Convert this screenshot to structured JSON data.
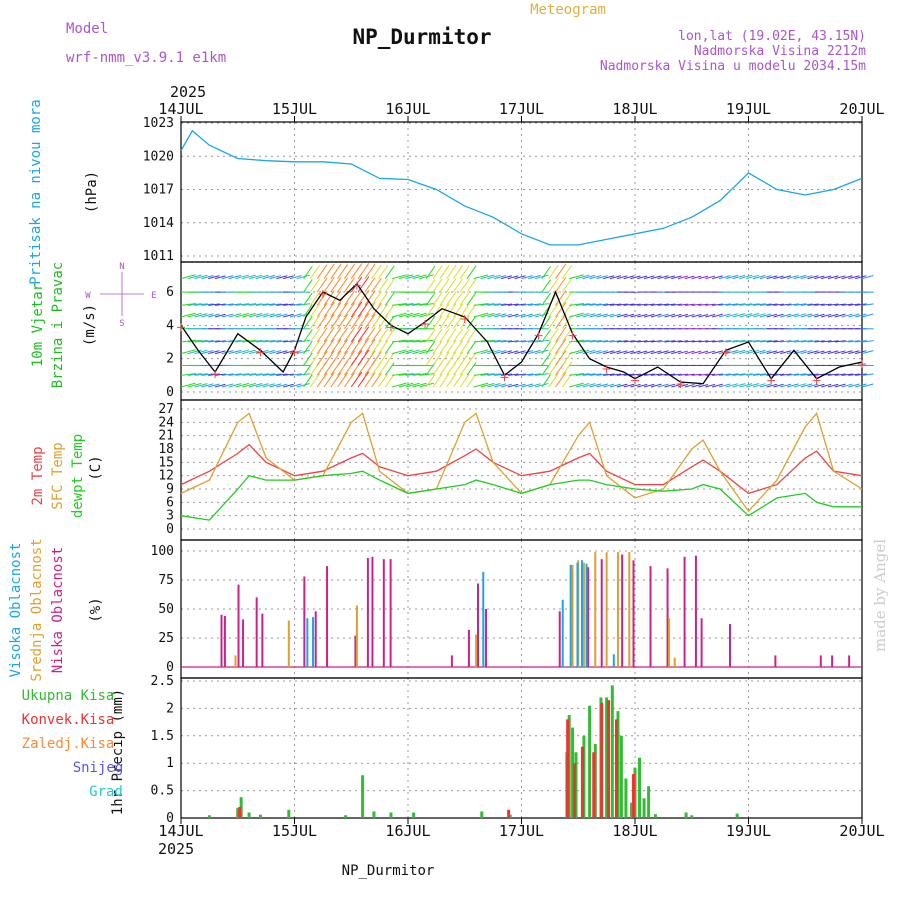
{
  "header": {
    "model_label": "Model",
    "model_name": "wrf-nmm_v3.9.1 e1km",
    "title": "NP_Durmitor",
    "meteogram_label": "Meteogram",
    "coords": "lon,lat (19.02E, 43.15N)",
    "elevation": "Nadmorska Visina 2212m",
    "model_elevation": "Nadmorska Visina u modelu 2034.15m",
    "year": "2025",
    "footer_station": "NP_Durmitor",
    "credit": "made by Angel"
  },
  "colors": {
    "pressure": "#1aa7e6",
    "wind_label": "#22bb22",
    "temp2m": "#ee4444",
    "sfc_temp": "#e0a030",
    "dewpoint": "#22cc22",
    "cloud_high": "#1aa7e6",
    "cloud_mid": "#e0a030",
    "cloud_low": "#cc2288",
    "precip_total": "#33bb33",
    "precip_conv": "#ee3333",
    "precip_frozen": "#ff8833",
    "snow": "#5555ee",
    "graupel": "#22cccc",
    "compass": "#aa55cc",
    "grid": "#999999"
  },
  "axes": {
    "x_ticks": [
      "14JUL",
      "15JUL",
      "16JUL",
      "17JUL",
      "18JUL",
      "19JUL",
      "20JUL"
    ],
    "x_range_days": [
      0,
      6
    ]
  },
  "chart_data": [
    {
      "type": "line",
      "panel": "pressure",
      "ylabel_lines": [
        "Pritisak na nivou mora"
      ],
      "unit": "(hPa)",
      "ylim": [
        1011,
        1023
      ],
      "yticks": [
        "1023",
        "1020",
        "1017",
        "1014",
        "1011"
      ],
      "x": [
        0,
        0.1,
        0.25,
        0.5,
        0.75,
        1.0,
        1.25,
        1.5,
        1.75,
        2.0,
        2.25,
        2.5,
        2.75,
        3.0,
        3.25,
        3.5,
        3.75,
        4.0,
        4.25,
        4.5,
        4.75,
        5.0,
        5.25,
        5.5,
        5.75,
        6.0
      ],
      "series": [
        {
          "values": [
            1020.5,
            1022.3,
            1021,
            1019.8,
            1019.6,
            1019.5,
            1019.5,
            1019.3,
            1018,
            1017.9,
            1017,
            1015.5,
            1014.5,
            1013,
            1012,
            1012,
            1012.5,
            1013,
            1013.5,
            1014.5,
            1016,
            1018.5,
            1017,
            1016.5,
            1017,
            1018
          ]
        }
      ]
    },
    {
      "type": "line",
      "panel": "wind",
      "ylabel_lines": [
        "10m Vjetar",
        "Brzina i Pravac"
      ],
      "unit": "(m/s)",
      "ylim": [
        -0.5,
        7.5
      ],
      "yticks": [
        "6",
        "4",
        "2",
        "0"
      ],
      "compass": {
        "north": "N",
        "south": "S",
        "west": "W",
        "east": "E"
      },
      "x": [
        0,
        0.15,
        0.3,
        0.5,
        0.7,
        0.9,
        1.0,
        1.1,
        1.25,
        1.4,
        1.55,
        1.7,
        1.85,
        2.0,
        2.15,
        2.3,
        2.5,
        2.7,
        2.85,
        3.0,
        3.15,
        3.3,
        3.45,
        3.6,
        3.75,
        3.9,
        4.0,
        4.2,
        4.4,
        4.6,
        4.8,
        5.0,
        5.2,
        5.4,
        5.6,
        5.8,
        6.0
      ],
      "series": [
        {
          "name": "speed",
          "values": [
            4,
            2.5,
            1.2,
            3.5,
            2.5,
            1.2,
            2.5,
            4.5,
            6,
            5.5,
            6.5,
            5,
            4,
            3.5,
            4.2,
            5,
            4.5,
            3,
            1,
            1.8,
            3.5,
            6,
            3.5,
            2,
            1.5,
            1.2,
            0.8,
            1.5,
            0.6,
            0.5,
            2.5,
            3,
            0.8,
            2.5,
            0.8,
            1.5,
            1.8
          ]
        }
      ]
    },
    {
      "type": "line",
      "panel": "temperature",
      "ylabel_lines": [
        "2m Temp",
        "SFC Temp",
        "dewpt Temp"
      ],
      "unit": "(C)",
      "ylim": [
        -1,
        28
      ],
      "yticks": [
        "27",
        "24",
        "21",
        "18",
        "15",
        "12",
        "9",
        "6",
        "3",
        "0"
      ],
      "x": [
        0,
        0.25,
        0.5,
        0.6,
        0.75,
        1.0,
        1.25,
        1.5,
        1.6,
        1.75,
        2.0,
        2.25,
        2.5,
        2.6,
        2.75,
        3.0,
        3.25,
        3.5,
        3.6,
        3.75,
        4.0,
        4.25,
        4.5,
        4.6,
        4.75,
        5.0,
        5.25,
        5.5,
        5.6,
        5.75,
        6.0
      ],
      "series": [
        {
          "name": "2m Temp",
          "values": [
            10,
            13,
            17,
            19,
            15,
            12,
            13,
            16,
            17,
            14,
            12,
            13,
            16.5,
            18,
            15,
            12,
            13,
            16,
            17,
            13,
            10,
            10,
            14,
            15.5,
            13,
            8,
            10,
            16,
            17.5,
            13,
            12
          ]
        },
        {
          "name": "SFC Temp",
          "values": [
            8,
            11,
            24,
            26,
            16,
            11,
            12,
            24,
            26,
            13,
            8,
            9,
            24,
            26,
            15,
            8,
            10,
            21,
            24,
            12,
            7,
            9,
            18,
            20,
            13,
            4,
            11,
            23,
            26,
            13,
            9
          ]
        },
        {
          "name": "dewpt Temp",
          "values": [
            3,
            2,
            9,
            12,
            11,
            11,
            12,
            12.5,
            13,
            11,
            8,
            9,
            10,
            11,
            10,
            8,
            10,
            11,
            11,
            10,
            9,
            8.5,
            9,
            10,
            9,
            3,
            7,
            8,
            6,
            5,
            5
          ]
        }
      ]
    },
    {
      "type": "bar",
      "panel": "clouds",
      "ylabel_lines": [
        "Visoka Oblacnost",
        "Srednja Oblacnost",
        "Niska Oblacnost"
      ],
      "unit": "(%)",
      "ylim": [
        0,
        100
      ],
      "yticks": [
        "100",
        "75",
        "50",
        "25",
        "0"
      ],
      "series": [
        {
          "name": "Niska Oblacnost",
          "x": [
            0.37,
            0.4,
            0.52,
            0.56,
            0.68,
            0.73,
            1.1,
            1.2,
            1.3,
            1.55,
            1.66,
            1.7,
            1.8,
            1.86,
            2.4,
            2.55,
            2.63,
            2.7,
            3.35,
            3.6,
            3.72,
            3.9,
            4.0,
            4.15,
            4.3,
            4.45,
            4.55,
            4.6,
            4.85,
            5.25,
            5.65,
            5.75,
            5.9
          ],
          "values": [
            45,
            44,
            71,
            41,
            60,
            46,
            78,
            48,
            87,
            27,
            94,
            95,
            93,
            93,
            10,
            32,
            72,
            50,
            48,
            86,
            93,
            97,
            92,
            87,
            85,
            95,
            96,
            42,
            37,
            10,
            10,
            10,
            10
          ]
        },
        {
          "name": "Srednja Oblacnost",
          "x": [
            0.48,
            0.95,
            1.55,
            2.6,
            3.45,
            3.5,
            3.55,
            3.65,
            3.75,
            3.85,
            3.95,
            4.3,
            4.35
          ],
          "values": [
            10,
            40,
            53,
            28,
            88,
            92,
            90,
            99,
            99,
            99,
            99,
            42,
            8
          ]
        },
        {
          "name": "Visoka Oblacnost",
          "x": [
            1.1,
            1.15,
            2.65,
            3.35,
            3.42,
            3.48,
            3.52,
            3.56,
            3.8
          ],
          "values": [
            42,
            43,
            82,
            58,
            88,
            90,
            92,
            89,
            11
          ]
        }
      ]
    },
    {
      "type": "bar",
      "panel": "precipitation",
      "ylabel": "1hr Precip (mm)",
      "legend": [
        "Ukupna Kisa",
        "Konvek.Kisa",
        "Zaledj.Kisa",
        "Snijeg",
        "Grad"
      ],
      "ylim": [
        0,
        2.5
      ],
      "yticks": [
        "2.5",
        "2",
        "1.5",
        "1",
        "0.5",
        "0"
      ],
      "series": [
        {
          "name": "Ukupna Kisa",
          "x": [
            0.25,
            0.5,
            0.53,
            0.6,
            0.7,
            0.95,
            1.45,
            1.6,
            1.7,
            1.85,
            2.05,
            2.65,
            2.9,
            3.4,
            3.42,
            3.45,
            3.48,
            3.55,
            3.6,
            3.65,
            3.7,
            3.75,
            3.8,
            3.85,
            3.88,
            3.92,
            3.97,
            4.0,
            4.04,
            4.08,
            4.12,
            4.18,
            4.45,
            4.5,
            4.9
          ],
          "values": [
            0.05,
            0.18,
            0.38,
            0.1,
            0.06,
            0.15,
            0.05,
            0.78,
            0.12,
            0.1,
            0.1,
            0.12,
            0.06,
            1.2,
            1.88,
            1.65,
            1.2,
            1.5,
            2.05,
            1.35,
            2.2,
            2.2,
            2.42,
            1.95,
            1.5,
            0.72,
            0.28,
            0.92,
            1.1,
            0.36,
            0.58,
            0.07,
            0.1,
            0.05,
            0.08
          ]
        },
        {
          "name": "Konvek.Kisa",
          "x": [
            0.53,
            2.9,
            3.42,
            3.48,
            3.55,
            3.65,
            3.72,
            3.78,
            3.85,
            4.0
          ],
          "values": [
            0.2,
            0.15,
            1.8,
            1.0,
            1.3,
            1.2,
            2.1,
            2.15,
            1.8,
            0.8
          ]
        }
      ]
    }
  ]
}
